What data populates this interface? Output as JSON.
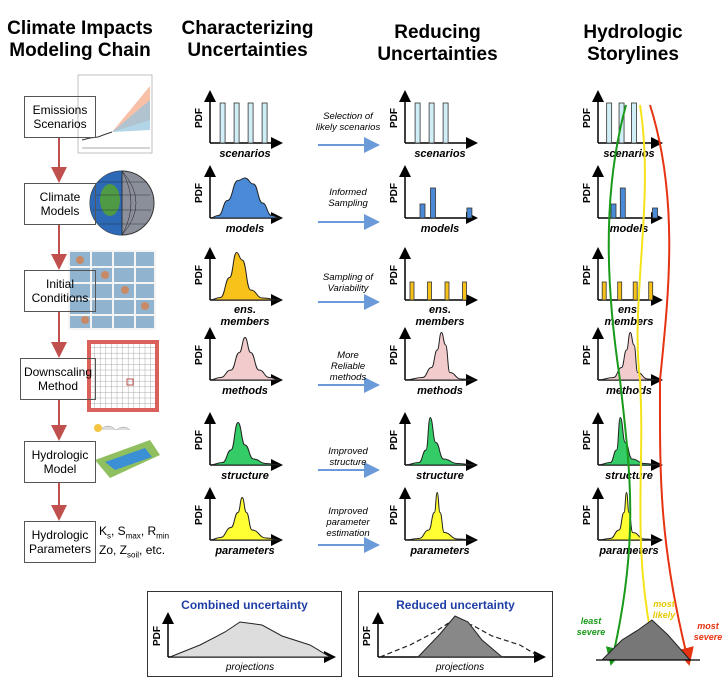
{
  "headers": {
    "col1": [
      "Climate Impacts",
      "Modeling Chain"
    ],
    "col2": [
      "Characterizing",
      "Uncertainties"
    ],
    "col3": [
      "Reducing",
      "Uncertainties"
    ],
    "col4": [
      "Hydrologic",
      "Storylines"
    ]
  },
  "chain": [
    {
      "label": [
        "Emissions",
        "Scenarios"
      ],
      "color": "#a9dcea"
    },
    {
      "label": [
        "Climate",
        "Models"
      ],
      "color": "#4b8ad6"
    },
    {
      "label": [
        "Initial",
        "Conditions"
      ],
      "color": "#f7c21a"
    },
    {
      "label": [
        "Downscaling",
        "Method"
      ],
      "color": "#f2cccc"
    },
    {
      "label": [
        "Hydrologic",
        "Model"
      ],
      "color": "#33cc66"
    },
    {
      "label": [
        "Hydrologic",
        "Parameters"
      ],
      "color": "#ffff33"
    }
  ],
  "params_text": {
    "line1_a": "K",
    "line1_a_sub": "s",
    "line1_b": ", S",
    "line1_b_sub": "max",
    "line1_c": ", R",
    "line1_c_sub": "min",
    "line2_a": "Zo, Z",
    "line2_a_sub": "soil",
    "line2_b": ", etc."
  },
  "axis_label": "PDF",
  "row_labels": [
    "scenarios",
    "models",
    [
      "ens.",
      "members"
    ],
    "methods",
    "structure",
    "parameters"
  ],
  "arrow_labels": [
    [
      "Selection of",
      "likely scenarios"
    ],
    [
      "Informed",
      "Sampling"
    ],
    [
      "Sampling of",
      "Variability"
    ],
    [
      "More",
      "Reliable",
      "methods"
    ],
    [
      "Improved",
      "structure"
    ],
    [
      "Improved",
      "parameter",
      "estimation"
    ]
  ],
  "row_colors": [
    "#cfeef6",
    "#4b8ad6",
    "#f7c21a",
    "#f2cccc",
    "#33cc66",
    "#ffff33"
  ],
  "combined": {
    "title": "Combined uncertainty",
    "xlabel": "projections"
  },
  "reduced": {
    "title": "Reduced uncertainty",
    "xlabel": "projections"
  },
  "storylines": {
    "least": [
      "least",
      "severe"
    ],
    "likely": [
      "most",
      "likely"
    ],
    "severe": [
      "most",
      "severe"
    ]
  },
  "colors": {
    "arrow": "#6a9bd8",
    "chain_arrow": "#c0504d",
    "least": "#1a9a1a",
    "likely": "#f5e31a",
    "severe": "#e63312"
  }
}
